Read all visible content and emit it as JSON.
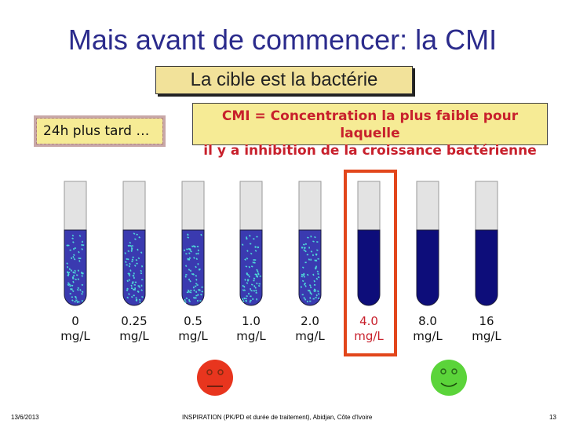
{
  "slide": {
    "title": "Mais avant de commencer: la CMI",
    "subtitle": "La cible est la bactérie",
    "later_note": "24h plus tard …",
    "definition_line1": "CMI = Concentration la plus faible pour laquelle",
    "definition_line2": "il y a inhibition de la croissance bactérienne"
  },
  "tubes": [
    {
      "conc": "0",
      "unit": "mg/L",
      "growth": true,
      "highlight": false
    },
    {
      "conc": "0.25",
      "unit": "mg/L",
      "growth": true,
      "highlight": false
    },
    {
      "conc": "0.5",
      "unit": "mg/L",
      "growth": true,
      "highlight": false
    },
    {
      "conc": "1.0",
      "unit": "mg/L",
      "growth": true,
      "highlight": false
    },
    {
      "conc": "2.0",
      "unit": "mg/L",
      "growth": true,
      "highlight": false
    },
    {
      "conc": "4.0",
      "unit": "mg/L",
      "growth": false,
      "highlight": true
    },
    {
      "conc": "8.0",
      "unit": "mg/L",
      "growth": false,
      "highlight": false
    },
    {
      "conc": "16",
      "unit": "mg/L",
      "growth": false,
      "highlight": false
    }
  ],
  "faces": {
    "sad_color": "#e8351e",
    "happy_color": "#5bd43a"
  },
  "colors": {
    "title": "#2b2b8c",
    "clear_liquid": "#0d0d7a",
    "turbid_liquid": "#3a3ab0",
    "bacteria": "#4fd8d8",
    "highlight": "#e2461b",
    "definition_text": "#c8202c"
  },
  "footer": {
    "date": "13/6/2013",
    "source": "INSPIRATION (PK/PD et durée de traitement), Abidjan, Côte d'Ivoire",
    "page": "13"
  }
}
